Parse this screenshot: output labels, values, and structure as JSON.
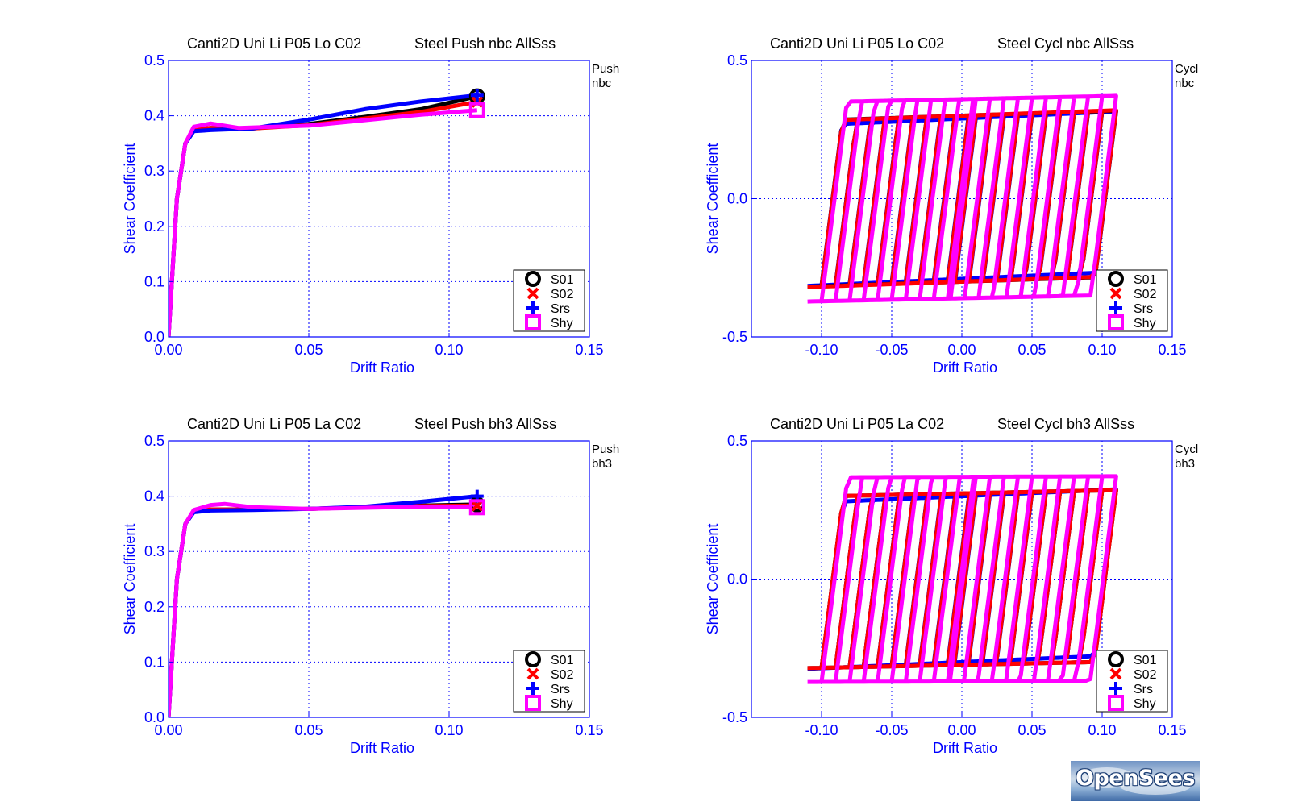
{
  "colors": {
    "axis": "#0000ff",
    "S01": "#000000",
    "S02": "#ff0000",
    "Srs": "#0000ff",
    "Shy": "#ff00ff"
  },
  "logo": {
    "text": "OpenSees"
  },
  "legend_items": [
    {
      "name": "S01",
      "marker": "circle",
      "color": "#000000"
    },
    {
      "name": "S02",
      "marker": "x",
      "color": "#ff0000"
    },
    {
      "name": "Srs",
      "marker": "plus",
      "color": "#0000ff"
    },
    {
      "name": "Shy",
      "marker": "square",
      "color": "#ff00ff"
    }
  ],
  "chart_data": [
    {
      "type": "line",
      "title_left": "Canti2D Uni Li P05 Lo C02",
      "title_right": "Steel Push nbc AllSss",
      "side_label": [
        "Push",
        "nbc"
      ],
      "xlabel": "Drift Ratio",
      "ylabel": "Shear Coefficient",
      "xlim": [
        0.0,
        0.15
      ],
      "ylim": [
        0.0,
        0.5
      ],
      "xticks": [
        "0.00",
        "0.05",
        "0.10",
        "0.15"
      ],
      "yticks": [
        "0.0",
        "0.1",
        "0.2",
        "0.3",
        "0.4",
        "0.5"
      ],
      "grid": true,
      "legend_position": "bottom-right",
      "series": [
        {
          "name": "S01",
          "points": [
            [
              0,
              0
            ],
            [
              0.003,
              0.25
            ],
            [
              0.006,
              0.35
            ],
            [
              0.009,
              0.375
            ],
            [
              0.015,
              0.378
            ],
            [
              0.03,
              0.377
            ],
            [
              0.05,
              0.385
            ],
            [
              0.07,
              0.398
            ],
            [
              0.09,
              0.412
            ],
            [
              0.11,
              0.435
            ]
          ],
          "end_marker": [
            0.11,
            0.435
          ]
        },
        {
          "name": "S02",
          "points": [
            [
              0,
              0
            ],
            [
              0.003,
              0.25
            ],
            [
              0.006,
              0.35
            ],
            [
              0.009,
              0.375
            ],
            [
              0.015,
              0.378
            ],
            [
              0.03,
              0.377
            ],
            [
              0.05,
              0.383
            ],
            [
              0.07,
              0.395
            ],
            [
              0.09,
              0.407
            ],
            [
              0.11,
              0.425
            ]
          ],
          "end_marker": [
            0.11,
            0.425
          ]
        },
        {
          "name": "Srs",
          "points": [
            [
              0,
              0
            ],
            [
              0.003,
              0.25
            ],
            [
              0.006,
              0.35
            ],
            [
              0.009,
              0.372
            ],
            [
              0.015,
              0.374
            ],
            [
              0.03,
              0.377
            ],
            [
              0.05,
              0.393
            ],
            [
              0.07,
              0.412
            ],
            [
              0.09,
              0.426
            ],
            [
              0.11,
              0.437
            ]
          ],
          "end_marker": [
            0.11,
            0.437
          ]
        },
        {
          "name": "Shy",
          "points": [
            [
              0,
              0
            ],
            [
              0.003,
              0.25
            ],
            [
              0.006,
              0.35
            ],
            [
              0.009,
              0.38
            ],
            [
              0.015,
              0.386
            ],
            [
              0.025,
              0.378
            ],
            [
              0.05,
              0.382
            ],
            [
              0.07,
              0.392
            ],
            [
              0.09,
              0.402
            ],
            [
              0.11,
              0.41
            ]
          ],
          "end_marker": [
            0.11,
            0.41
          ]
        }
      ]
    },
    {
      "type": "line",
      "title_left": "Canti2D Uni Li P05 Lo C02",
      "title_right": "Steel Cycl nbc AllSss",
      "side_label": [
        "Cycl",
        "nbc"
      ],
      "xlabel": "Drift Ratio",
      "ylabel": "Shear Coefficient",
      "xlim": [
        -0.15,
        0.15
      ],
      "ylim": [
        -0.5,
        0.5
      ],
      "xticks": [
        "-0.10",
        "-0.05",
        "0.00",
        "0.05",
        "0.10",
        "0.15"
      ],
      "yticks": [
        "-0.5",
        "0.0",
        "0.5"
      ],
      "grid": true,
      "legend_position": "bottom-right",
      "hysteresis": {
        "amplitudes": [
          0.01,
          0.02,
          0.03,
          0.04,
          0.05,
          0.06,
          0.07,
          0.08,
          0.09,
          0.1,
          0.11
        ],
        "k0": 40
      },
      "series": [
        {
          "name": "S01",
          "fy": 0.3,
          "b": 0.55,
          "order": 1
        },
        {
          "name": "S02",
          "fy": 0.3,
          "b": 0.6,
          "order": 2
        },
        {
          "name": "Srs",
          "fy": 0.29,
          "b": 0.8,
          "order": 0
        },
        {
          "name": "Shy",
          "fy": 0.36,
          "b": 0.3,
          "order": 3
        }
      ]
    },
    {
      "type": "line",
      "title_left": "Canti2D Uni Li P05 La C02",
      "title_right": "Steel Push bh3 AllSss",
      "side_label": [
        "Push",
        "bh3"
      ],
      "xlabel": "Drift Ratio",
      "ylabel": "Shear Coefficient",
      "xlim": [
        0.0,
        0.15
      ],
      "ylim": [
        0.0,
        0.5
      ],
      "xticks": [
        "0.00",
        "0.05",
        "0.10",
        "0.15"
      ],
      "yticks": [
        "0.0",
        "0.1",
        "0.2",
        "0.3",
        "0.4",
        "0.5"
      ],
      "grid": true,
      "legend_position": "bottom-right",
      "series": [
        {
          "name": "S01",
          "points": [
            [
              0,
              0
            ],
            [
              0.003,
              0.25
            ],
            [
              0.006,
              0.35
            ],
            [
              0.009,
              0.372
            ],
            [
              0.015,
              0.376
            ],
            [
              0.03,
              0.376
            ],
            [
              0.05,
              0.377
            ],
            [
              0.07,
              0.38
            ],
            [
              0.09,
              0.383
            ],
            [
              0.11,
              0.385
            ]
          ],
          "end_marker": [
            0.11,
            0.385
          ]
        },
        {
          "name": "S02",
          "points": [
            [
              0,
              0
            ],
            [
              0.003,
              0.25
            ],
            [
              0.006,
              0.35
            ],
            [
              0.009,
              0.372
            ],
            [
              0.015,
              0.376
            ],
            [
              0.03,
              0.376
            ],
            [
              0.05,
              0.377
            ],
            [
              0.07,
              0.38
            ],
            [
              0.09,
              0.382
            ],
            [
              0.11,
              0.383
            ]
          ],
          "end_marker": [
            0.11,
            0.383
          ]
        },
        {
          "name": "Srs",
          "points": [
            [
              0,
              0
            ],
            [
              0.003,
              0.25
            ],
            [
              0.006,
              0.35
            ],
            [
              0.009,
              0.371
            ],
            [
              0.015,
              0.374
            ],
            [
              0.03,
              0.375
            ],
            [
              0.05,
              0.377
            ],
            [
              0.07,
              0.381
            ],
            [
              0.09,
              0.39
            ],
            [
              0.11,
              0.4
            ]
          ],
          "end_marker": [
            0.11,
            0.4
          ]
        },
        {
          "name": "Shy",
          "points": [
            [
              0,
              0
            ],
            [
              0.003,
              0.25
            ],
            [
              0.006,
              0.35
            ],
            [
              0.009,
              0.375
            ],
            [
              0.015,
              0.384
            ],
            [
              0.02,
              0.386
            ],
            [
              0.03,
              0.38
            ],
            [
              0.05,
              0.377
            ],
            [
              0.07,
              0.379
            ],
            [
              0.09,
              0.381
            ],
            [
              0.11,
              0.38
            ]
          ],
          "end_marker": [
            0.11,
            0.38
          ]
        }
      ]
    },
    {
      "type": "line",
      "title_left": "Canti2D Uni Li P05 La C02",
      "title_right": "Steel Cycl bh3 AllSss",
      "side_label": [
        "Cycl",
        "bh3"
      ],
      "xlabel": "Drift Ratio",
      "ylabel": "Shear Coefficient",
      "xlim": [
        -0.15,
        0.15
      ],
      "ylim": [
        -0.5,
        0.5
      ],
      "xticks": [
        "-0.10",
        "-0.05",
        "0.00",
        "0.05",
        "0.10",
        "0.15"
      ],
      "yticks": [
        "-0.5",
        "0.0",
        "0.5"
      ],
      "grid": true,
      "legend_position": "bottom-right",
      "hysteresis": {
        "amplitudes": [
          0.01,
          0.02,
          0.03,
          0.04,
          0.05,
          0.06,
          0.07,
          0.08,
          0.09,
          0.1,
          0.11
        ],
        "k0": 40
      },
      "series": [
        {
          "name": "S01",
          "fy": 0.31,
          "b": 0.35,
          "order": 1
        },
        {
          "name": "S02",
          "fy": 0.31,
          "b": 0.35,
          "order": 2
        },
        {
          "name": "Srs",
          "fy": 0.3,
          "b": 0.75,
          "order": 0
        },
        {
          "name": "Shy",
          "fy": 0.37,
          "b": 0.05,
          "order": 3
        }
      ]
    }
  ]
}
